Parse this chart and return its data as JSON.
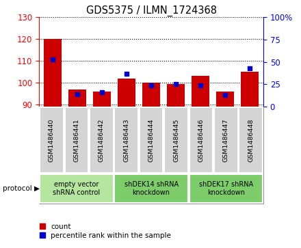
{
  "title": "GDS5375 / ILMN_1724368",
  "samples": [
    "GSM1486440",
    "GSM1486441",
    "GSM1486442",
    "GSM1486443",
    "GSM1486444",
    "GSM1486445",
    "GSM1486446",
    "GSM1486447",
    "GSM1486448"
  ],
  "count_values": [
    120,
    97,
    96,
    102,
    100,
    99.5,
    103,
    96,
    105
  ],
  "percentile_values": [
    53,
    14,
    16,
    37,
    24,
    25,
    24,
    13,
    43
  ],
  "ylim_left": [
    89,
    130
  ],
  "ylim_right": [
    0,
    100
  ],
  "yticks_left": [
    90,
    100,
    110,
    120,
    130
  ],
  "yticks_right": [
    0,
    25,
    50,
    75,
    100
  ],
  "bar_color": "#cc0000",
  "dot_color": "#0000cc",
  "plot_bg": "#ffffff",
  "cell_bg": "#d4d4d4",
  "groups": [
    {
      "label": "empty vector\nshRNA control",
      "start": 0,
      "end": 3,
      "color": "#b5e6a0"
    },
    {
      "label": "shDEK14 shRNA\nknockdown",
      "start": 3,
      "end": 6,
      "color": "#7dcd6a"
    },
    {
      "label": "shDEK17 shRNA\nknockdown",
      "start": 6,
      "end": 9,
      "color": "#7dcd6a"
    }
  ],
  "legend_count_label": "count",
  "legend_percentile_label": "percentile rank within the sample",
  "protocol_label": "protocol"
}
